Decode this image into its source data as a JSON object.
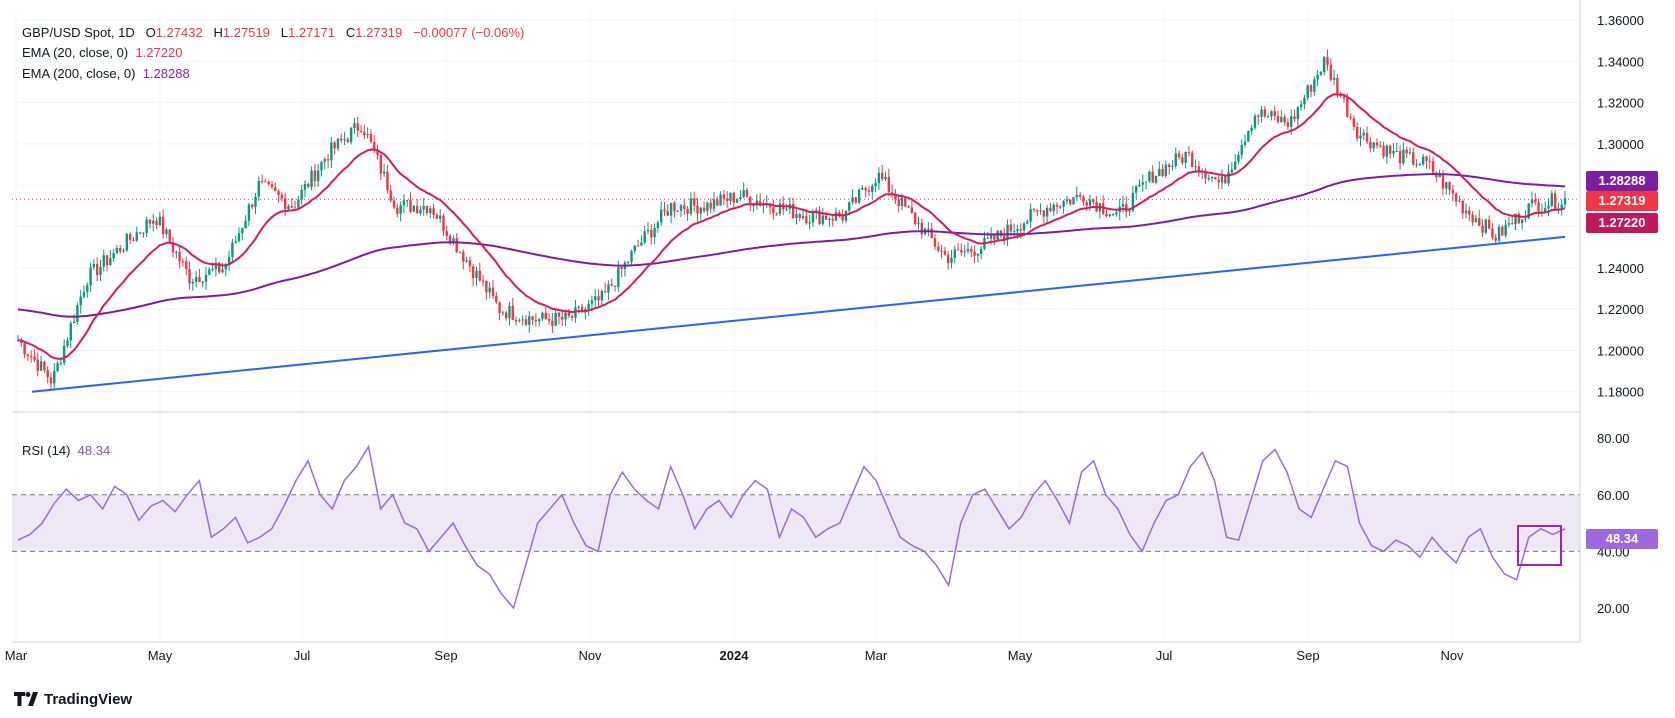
{
  "header": {
    "symbol": "GBP/USD Spot, 1D",
    "open_label": "O",
    "open": "1.27432",
    "high_label": "H",
    "high": "1.27519",
    "low_label": "L",
    "low": "1.27171",
    "close_label": "C",
    "close": "1.27319",
    "change": "−0.00077 (−0.06%)",
    "ema20_label": "EMA (20, close, 0)",
    "ema20_value": "1.27220",
    "ema200_label": "EMA (200, close, 0)",
    "ema200_value": "1.28288",
    "rsi_label": "RSI (14)",
    "rsi_value": "48.34"
  },
  "price_tags": {
    "ema200": "1.28288",
    "close": "1.27319",
    "ema20": "1.27220",
    "rsi": "48.34"
  },
  "brand": "TradingView",
  "colors": {
    "up": "#089981",
    "down": "#f23645",
    "ema20": "#d81b60",
    "ema200": "#7b1fa2",
    "trendline": "#2962ff",
    "rsi": "#9c6ade",
    "rsi_band": "#ede7f6"
  },
  "chart_data": [
    {
      "type": "candlestick",
      "title": "GBP/USD Spot, 1D",
      "x_ticks": [
        "Mar",
        "May",
        "Jul",
        "Sep",
        "Nov",
        "2024",
        "Mar",
        "May",
        "Jul",
        "Sep",
        "Nov"
      ],
      "y_ticks": [
        "1.36000",
        "1.34000",
        "1.32000",
        "1.30000",
        "1.28000",
        "1.26000",
        "1.24000",
        "1.22000",
        "1.20000",
        "1.18000"
      ],
      "ylim": [
        1.17,
        1.36
      ],
      "close_path": [
        [
          "Mar 2023",
          1.205
        ],
        [
          "Mar 2023",
          1.185
        ],
        [
          "Apr 2023",
          1.235
        ],
        [
          "Apr 2023",
          1.25
        ],
        [
          "May 2023",
          1.265
        ],
        [
          "May 2023",
          1.235
        ],
        [
          "Jun 2023",
          1.24
        ],
        [
          "Jun 2023",
          1.28
        ],
        [
          "Jun 2023",
          1.27
        ],
        [
          "Jul 2023",
          1.295
        ],
        [
          "Jul 2023",
          1.31
        ],
        [
          "Aug 2023",
          1.27
        ],
        [
          "Aug 2023",
          1.27
        ],
        [
          "Sep 2023",
          1.245
        ],
        [
          "Sep 2023",
          1.22
        ],
        [
          "Oct 2023",
          1.215
        ],
        [
          "Oct 2023",
          1.215
        ],
        [
          "Nov 2023",
          1.225
        ],
        [
          "Nov 2023",
          1.25
        ],
        [
          "Dec 2023",
          1.27
        ],
        [
          "Dec 2023",
          1.27
        ],
        [
          "Jan 2024",
          1.275
        ],
        [
          "Jan 2024",
          1.27
        ],
        [
          "Feb 2024",
          1.265
        ],
        [
          "Feb 2024",
          1.265
        ],
        [
          "Mar 2024",
          1.285
        ],
        [
          "Mar 2024",
          1.265
        ],
        [
          "Apr 2024",
          1.245
        ],
        [
          "Apr 2024",
          1.25
        ],
        [
          "May 2024",
          1.26
        ],
        [
          "May 2024",
          1.27
        ],
        [
          "Jun 2024",
          1.275
        ],
        [
          "Jun 2024",
          1.265
        ],
        [
          "Jul 2024",
          1.285
        ],
        [
          "Jul 2024",
          1.295
        ],
        [
          "Aug 2024",
          1.28
        ],
        [
          "Aug 2024",
          1.315
        ],
        [
          "Sep 2024",
          1.31
        ],
        [
          "Sep 2024",
          1.34
        ],
        [
          "Oct 2024",
          1.305
        ],
        [
          "Oct 2024",
          1.295
        ],
        [
          "Nov 2024",
          1.29
        ],
        [
          "Nov 2024",
          1.27
        ],
        [
          "Nov 2024",
          1.255
        ],
        [
          "Dec 2024",
          1.27
        ],
        [
          "Dec 2024",
          1.2732
        ]
      ],
      "series": [
        {
          "name": "EMA (20, close, 0)",
          "last": 1.2722
        },
        {
          "name": "EMA (200, close, 0)",
          "last": 1.28288
        }
      ],
      "trendline": {
        "from": [
          "Mar 2023",
          1.18
        ],
        "to": [
          "Dec 2024",
          1.255
        ]
      },
      "last_close": 1.27319,
      "grid": true
    },
    {
      "type": "line",
      "title": "RSI (14)",
      "y_ticks": [
        "80.00",
        "60.00",
        "40.00",
        "20.00"
      ],
      "ylim": [
        15,
        85
      ],
      "bands": [
        40,
        60
      ],
      "values": [
        44,
        46,
        50,
        57,
        62,
        58,
        60,
        55,
        63,
        60,
        51,
        56,
        58,
        54,
        60,
        65,
        45,
        48,
        52,
        43,
        45,
        48,
        56,
        65,
        72,
        60,
        55,
        65,
        70,
        77,
        55,
        60,
        50,
        48,
        40,
        45,
        50,
        42,
        35,
        32,
        25,
        20,
        35,
        50,
        55,
        60,
        50,
        42,
        40,
        60,
        68,
        62,
        58,
        55,
        70,
        60,
        48,
        55,
        58,
        52,
        60,
        65,
        62,
        45,
        55,
        52,
        45,
        48,
        50,
        60,
        70,
        65,
        55,
        45,
        42,
        40,
        35,
        28,
        50,
        60,
        62,
        55,
        48,
        52,
        60,
        65,
        58,
        50,
        68,
        72,
        60,
        55,
        46,
        40,
        50,
        58,
        60,
        70,
        75,
        65,
        45,
        44,
        58,
        72,
        76,
        68,
        55,
        52,
        62,
        72,
        70,
        50,
        42,
        40,
        44,
        42,
        38,
        45,
        40,
        36,
        45,
        48,
        38,
        32,
        30,
        45,
        48,
        46,
        48
      ]
    }
  ]
}
